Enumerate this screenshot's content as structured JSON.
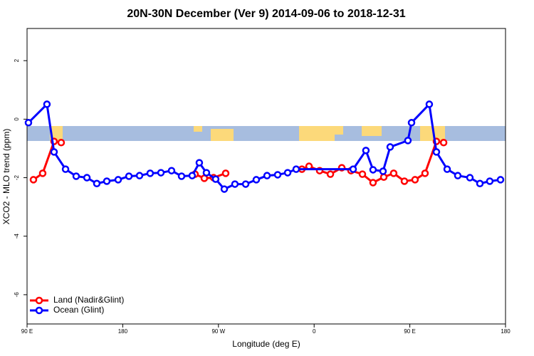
{
  "chart_data": {
    "type": "line",
    "title": "20N-30N December (Ver 9)   2014-09-06 to 2018-12-31",
    "x_label": "Longitude (deg E)",
    "y_label": "XCO2 - MLO trend (ppm)",
    "xlim": [
      90,
      540
    ],
    "xticks": [
      {
        "value": 90,
        "label": "90 E"
      },
      {
        "value": 180,
        "label": "180"
      },
      {
        "value": 270,
        "label": "90 W"
      },
      {
        "value": 360,
        "label": "0"
      },
      {
        "value": 450,
        "label": "90 E"
      },
      {
        "value": 540,
        "label": "180"
      }
    ],
    "ylim": [
      -7,
      3.1
    ],
    "yticks": [
      2,
      0,
      -2,
      -4,
      -6
    ],
    "grid": false,
    "legend": "bottom-left",
    "series": [
      {
        "name": "Land (Nadir&Glint)",
        "color": "#ff0000",
        "x": [
          96.0,
          104.7,
          115.4,
          122.1,
          null,
          248.0,
          256.7,
          265.4,
          276.8,
          null,
          348.5,
          355.2,
          365.2,
          375.3,
          386.0,
          394.7,
          405.4,
          415.4,
          425.5,
          434.8,
          444.9,
          454.9,
          464.3,
          475.0,
          481.8
        ],
        "values": [
          -2.07,
          -1.85,
          -0.76,
          -0.8,
          null,
          -1.88,
          -2.02,
          -2.0,
          -1.85,
          null,
          -1.71,
          -1.61,
          -1.76,
          -1.88,
          -1.66,
          -1.76,
          -1.88,
          -2.17,
          -1.98,
          -1.85,
          -2.12,
          -2.07,
          -1.85,
          -0.76,
          -0.8
        ]
      },
      {
        "name": "Ocean (Glint)",
        "color": "#0000ff",
        "x": [
          91.3,
          108.7,
          115.4,
          126.2,
          136.2,
          146.3,
          155.6,
          165.0,
          175.7,
          185.8,
          195.8,
          205.8,
          215.9,
          225.9,
          235.3,
          245.3,
          252.0,
          258.7,
          267.4,
          275.5,
          285.5,
          295.6,
          305.6,
          315.7,
          325.7,
          335.1,
          343.1,
          396.7,
          408.7,
          415.4,
          424.8,
          431.5,
          448.2,
          451.6,
          468.3,
          475.0,
          485.1,
          495.1,
          506.5,
          515.9,
          525.2,
          535.3
        ],
        "values": [
          -0.12,
          0.51,
          -1.12,
          -1.71,
          -1.95,
          -2.0,
          -2.2,
          -2.12,
          -2.07,
          -1.95,
          -1.93,
          -1.85,
          -1.83,
          -1.76,
          -1.95,
          -1.93,
          -1.49,
          -1.83,
          -2.05,
          -2.39,
          -2.22,
          -2.22,
          -2.07,
          -1.93,
          -1.9,
          -1.83,
          -1.71,
          -1.71,
          -1.07,
          -1.73,
          -1.78,
          -0.95,
          -0.73,
          -0.12,
          0.51,
          -1.12,
          -1.71,
          -1.93,
          -2.0,
          -2.2,
          -2.12,
          -2.07
        ]
      }
    ]
  }
}
